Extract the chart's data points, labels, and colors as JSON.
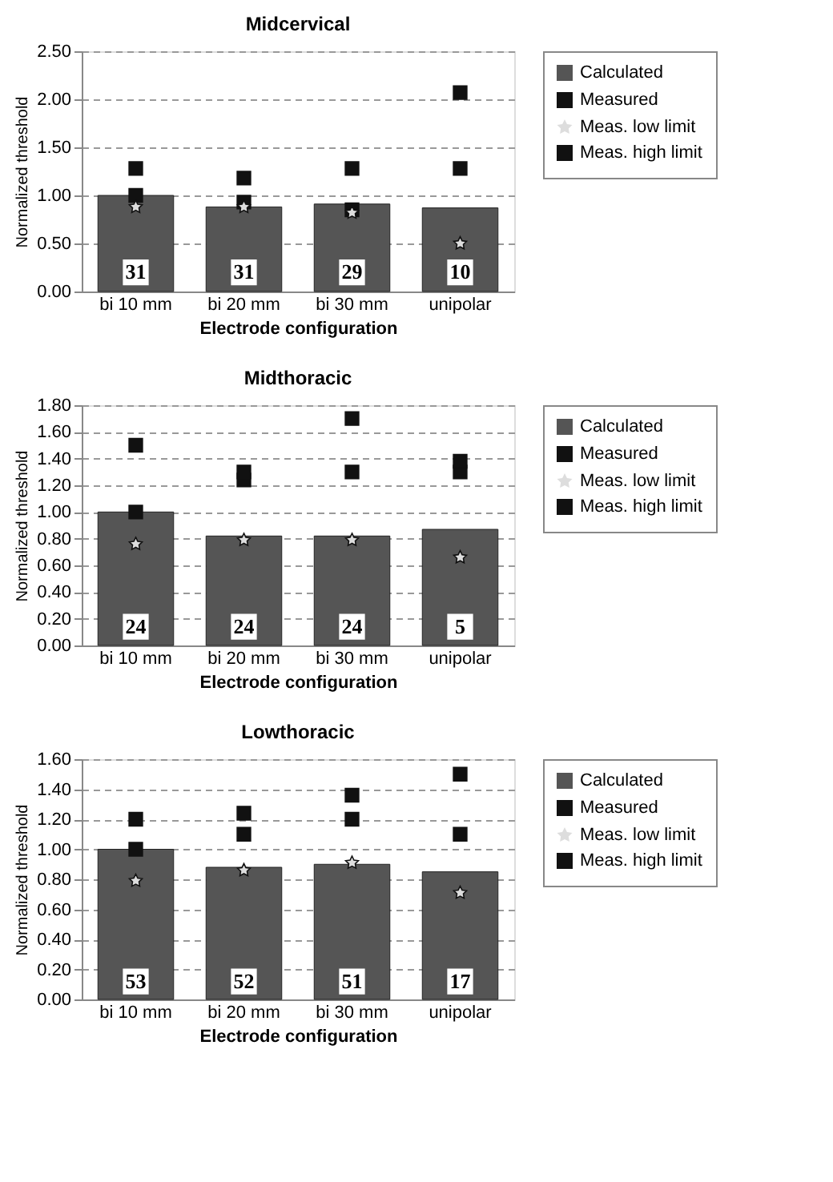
{
  "chart_data": [
    {
      "type": "bar",
      "title": "Midcervical",
      "xlabel": "Electrode configuration",
      "ylabel": "Normalized threshold",
      "categories": [
        "bi 10 mm",
        "bi 20 mm",
        "bi 30 mm",
        "unipolar"
      ],
      "series": [
        {
          "name": "Calculated",
          "color": "#555555",
          "values": [
            1.0,
            0.88,
            0.91,
            0.87
          ]
        },
        {
          "name": "Measured",
          "type": "scatter",
          "marker": "square",
          "color": "#111111",
          "values": [
            1.0,
            0.93,
            0.85,
            1.28
          ]
        },
        {
          "name": "Meas. low limit",
          "type": "scatter",
          "marker": "star",
          "color": "#dddddd",
          "values": [
            0.88,
            0.88,
            0.82,
            0.5
          ]
        },
        {
          "name": "Meas. high limit",
          "type": "scatter",
          "marker": "square",
          "color": "#111111",
          "values": [
            1.28,
            1.18,
            1.28,
            2.07
          ]
        }
      ],
      "annotations": [
        {
          "text": "31",
          "x": "bi 10 mm",
          "y": 0.2
        },
        {
          "text": "31",
          "x": "bi 20 mm",
          "y": 0.2
        },
        {
          "text": "29",
          "x": "bi 30 mm",
          "y": 0.2
        },
        {
          "text": "10",
          "x": "unipolar",
          "y": 0.2
        }
      ],
      "ylim": [
        0,
        2.5
      ],
      "yticks": [
        {
          "value": 0,
          "label": "0.00"
        },
        {
          "value": 0.5,
          "label": "0.50"
        },
        {
          "value": 1,
          "label": "1.00"
        },
        {
          "value": 1.5,
          "label": "1.50"
        },
        {
          "value": 2,
          "label": "2.00"
        },
        {
          "value": 2.5,
          "label": "2.50"
        }
      ],
      "grid": "y",
      "legend": "right"
    },
    {
      "type": "bar",
      "title": "Midthoracic",
      "xlabel": "Electrode configuration",
      "ylabel": "Normalized threshold",
      "categories": [
        "bi 10 mm",
        "bi 20 mm",
        "bi 30 mm",
        "unipolar"
      ],
      "series": [
        {
          "name": "Calculated",
          "color": "#555555",
          "values": [
            1.0,
            0.82,
            0.82,
            0.87
          ]
        },
        {
          "name": "Measured",
          "type": "scatter",
          "marker": "square",
          "color": "#111111",
          "values": [
            1.0,
            1.24,
            1.3,
            1.3
          ]
        },
        {
          "name": "Meas. low limit",
          "type": "scatter",
          "marker": "star",
          "color": "#dddddd",
          "values": [
            0.76,
            0.79,
            0.79,
            0.66
          ]
        },
        {
          "name": "Meas. high limit",
          "type": "scatter",
          "marker": "square",
          "color": "#111111",
          "values": [
            1.5,
            1.3,
            1.7,
            1.38
          ]
        }
      ],
      "annotations": [
        {
          "text": "24",
          "x": "bi 10 mm",
          "y": 0.14
        },
        {
          "text": "24",
          "x": "bi 20 mm",
          "y": 0.14
        },
        {
          "text": "24",
          "x": "bi 30 mm",
          "y": 0.14
        },
        {
          "text": "5",
          "x": "unipolar",
          "y": 0.14
        }
      ],
      "ylim": [
        0,
        1.8
      ],
      "yticks": [
        {
          "value": 0,
          "label": "0.00"
        },
        {
          "value": 0.2,
          "label": "0.20"
        },
        {
          "value": 0.4,
          "label": "0.40"
        },
        {
          "value": 0.6,
          "label": "0.60"
        },
        {
          "value": 0.8,
          "label": "0.80"
        },
        {
          "value": 1,
          "label": "1.00"
        },
        {
          "value": 1.2,
          "label": "1.20"
        },
        {
          "value": 1.4,
          "label": "1.40"
        },
        {
          "value": 1.6,
          "label": "1.60"
        },
        {
          "value": 1.8,
          "label": "1.80"
        }
      ],
      "grid": "y",
      "legend": "right"
    },
    {
      "type": "bar",
      "title": "Lowthoracic",
      "xlabel": "Electrode configuration",
      "ylabel": "Normalized threshold",
      "categories": [
        "bi 10 mm",
        "bi 20 mm",
        "bi 30 mm",
        "unipolar"
      ],
      "series": [
        {
          "name": "Calculated",
          "color": "#555555",
          "values": [
            1.0,
            0.88,
            0.9,
            0.85
          ]
        },
        {
          "name": "Measured",
          "type": "scatter",
          "marker": "square",
          "color": "#111111",
          "values": [
            1.0,
            1.1,
            1.2,
            1.1
          ]
        },
        {
          "name": "Meas. low limit",
          "type": "scatter",
          "marker": "star",
          "color": "#dddddd",
          "values": [
            0.79,
            0.86,
            0.91,
            0.71
          ]
        },
        {
          "name": "Meas. high limit",
          "type": "scatter",
          "marker": "square",
          "color": "#111111",
          "values": [
            1.2,
            1.24,
            1.36,
            1.5
          ]
        }
      ],
      "annotations": [
        {
          "text": "53",
          "x": "bi 10 mm",
          "y": 0.12
        },
        {
          "text": "52",
          "x": "bi 20 mm",
          "y": 0.12
        },
        {
          "text": "51",
          "x": "bi 30 mm",
          "y": 0.12
        },
        {
          "text": "17",
          "x": "unipolar",
          "y": 0.12
        }
      ],
      "ylim": [
        0,
        1.6
      ],
      "yticks": [
        {
          "value": 0,
          "label": "0.00"
        },
        {
          "value": 0.2,
          "label": "0.20"
        },
        {
          "value": 0.4,
          "label": "0.40"
        },
        {
          "value": 0.6,
          "label": "0.60"
        },
        {
          "value": 0.8,
          "label": "0.80"
        },
        {
          "value": 1,
          "label": "1.00"
        },
        {
          "value": 1.2,
          "label": "1.20"
        },
        {
          "value": 1.4,
          "label": "1.40"
        },
        {
          "value": 1.6,
          "label": "1.60"
        }
      ],
      "grid": "y",
      "legend": "right"
    }
  ]
}
